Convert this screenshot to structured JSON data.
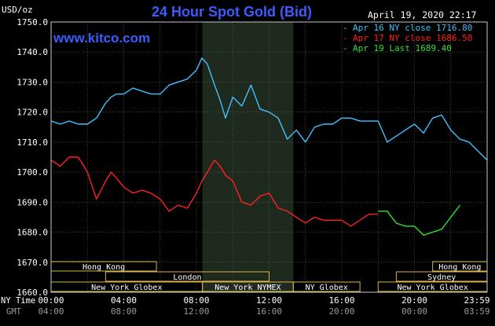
{
  "colors": {
    "background": "#000000",
    "plot_border": "#c8c8c8",
    "grid": "#666666",
    "axis_text": "#ffffff",
    "title": "#3c5cff",
    "site": "#3c5cff",
    "shade": "#1f2a1f",
    "session_box": "#d9b24a",
    "session_text": "#ffffff",
    "gmt_text": "#9a9a9a"
  },
  "chart_data": {
    "type": "line",
    "title": "24 Hour Spot Gold (Bid)",
    "site": "www.kitco.com",
    "timestamp": "April 19, 2020 22:17",
    "ylabel": "USD/oz",
    "ylim": [
      1660,
      1750
    ],
    "yticks": [
      "1750.0",
      "1740.0",
      "1730.0",
      "1720.0",
      "1710.0",
      "1700.0",
      "1690.0",
      "1680.0",
      "1670.0",
      "1660.0"
    ],
    "ytick_values": [
      1750,
      1740,
      1730,
      1720,
      1710,
      1700,
      1690,
      1680,
      1670,
      1660
    ],
    "xlim": [
      0,
      24
    ],
    "xticks_ny": [
      "00:00",
      "04:00",
      "08:00",
      "12:00",
      "16:00",
      "20:00",
      "23:59"
    ],
    "xticks_gmt": [
      "04:00",
      "08:00",
      "12:00",
      "16:00",
      "20:00",
      "00:00",
      "03:59"
    ],
    "xtick_values": [
      0,
      4,
      8,
      12,
      16,
      20,
      24
    ],
    "ny_time_label": "NY Time",
    "gmt_label": "GMT",
    "shaded_period": [
      8.33,
      13.33
    ],
    "grid": true,
    "legend_position": "top-right",
    "legend": [
      {
        "label": "Apr 16 NY close 1716.80",
        "color": "#40c0ff"
      },
      {
        "label": "Apr 17 NY close 1686.50",
        "color": "#ff2020"
      },
      {
        "label": "Apr 19 Last 1689.40",
        "color": "#30e030"
      }
    ],
    "series": [
      {
        "name": "Apr 16 NY close 1716.80",
        "color": "#40c0ff",
        "x": [
          0,
          0.5,
          1,
          1.5,
          2,
          2.5,
          3,
          3.3,
          3.6,
          4,
          4.5,
          5,
          5.5,
          6,
          6.5,
          7,
          7.5,
          8,
          8.3,
          8.6,
          9,
          9.3,
          9.6,
          10,
          10.5,
          11,
          11.5,
          12,
          12.5,
          13,
          13.5,
          14,
          14.5,
          15,
          15.5,
          16,
          16.5,
          17,
          17.5,
          18,
          18.5,
          19,
          19.5,
          20,
          20.5,
          21,
          21.5,
          22,
          22.5,
          23,
          23.5,
          24
        ],
        "y": [
          1717,
          1716,
          1717,
          1716,
          1716,
          1718,
          1723,
          1725,
          1726,
          1726,
          1728,
          1727,
          1726,
          1726,
          1729,
          1730,
          1731,
          1734,
          1738,
          1736,
          1729,
          1724,
          1718,
          1725,
          1722,
          1729,
          1721,
          1720,
          1718,
          1711,
          1714,
          1710,
          1715,
          1716,
          1716,
          1718,
          1718,
          1717,
          1717,
          1717,
          1710,
          1712,
          1714,
          1716,
          1713,
          1718,
          1719,
          1714,
          1711,
          1710,
          1707,
          1704
        ]
      },
      {
        "name": "Apr 17 NY close 1686.50",
        "color": "#ff2020",
        "x": [
          0,
          0.5,
          1,
          1.5,
          2,
          2.5,
          3,
          3.3,
          3.6,
          4,
          4.5,
          5,
          5.5,
          6,
          6.5,
          7,
          7.5,
          8,
          8.3,
          8.6,
          9,
          9.3,
          9.6,
          10,
          10.5,
          11,
          11.5,
          12,
          12.5,
          13,
          13.5,
          14,
          14.5,
          15,
          15.5,
          16,
          16.5,
          17,
          17.5,
          18
        ],
        "y": [
          1704,
          1702,
          1705,
          1705,
          1700,
          1691,
          1697,
          1700,
          1698,
          1695,
          1693,
          1694,
          1693,
          1691,
          1687,
          1689,
          1688,
          1693,
          1697,
          1700,
          1704,
          1702,
          1699,
          1697,
          1690,
          1689,
          1692,
          1693,
          1688,
          1687,
          1685,
          1683,
          1685,
          1684,
          1684,
          1684,
          1682,
          1684,
          1686,
          1686
        ]
      },
      {
        "name": "Apr 19 Last 1689.40",
        "color": "#30e030",
        "x": [
          18,
          18.5,
          19,
          19.5,
          20,
          20.5,
          21,
          21.5,
          22,
          22.5
        ],
        "y": [
          1687,
          1687,
          1683,
          1682,
          1682,
          1679,
          1680,
          1681,
          1685,
          1689
        ]
      }
    ],
    "sessions": [
      {
        "label": "Hong Kong",
        "start": 0,
        "end": 5.8,
        "row": 0
      },
      {
        "label": "Hong Kong",
        "start": 21,
        "end": 24,
        "row": 0
      },
      {
        "label": "London",
        "start": 3,
        "end": 12,
        "row": 1
      },
      {
        "label": "Sydney",
        "start": 19,
        "end": 24,
        "row": 1
      },
      {
        "label": "New York Globex",
        "start": 0,
        "end": 8.33,
        "row": 2
      },
      {
        "label": "New York NYMEX",
        "start": 8.33,
        "end": 13.33,
        "row": 2
      },
      {
        "label": "NY Globex",
        "start": 13.33,
        "end": 17,
        "row": 2
      },
      {
        "label": "New York Globex",
        "start": 18,
        "end": 24,
        "row": 2
      }
    ]
  }
}
